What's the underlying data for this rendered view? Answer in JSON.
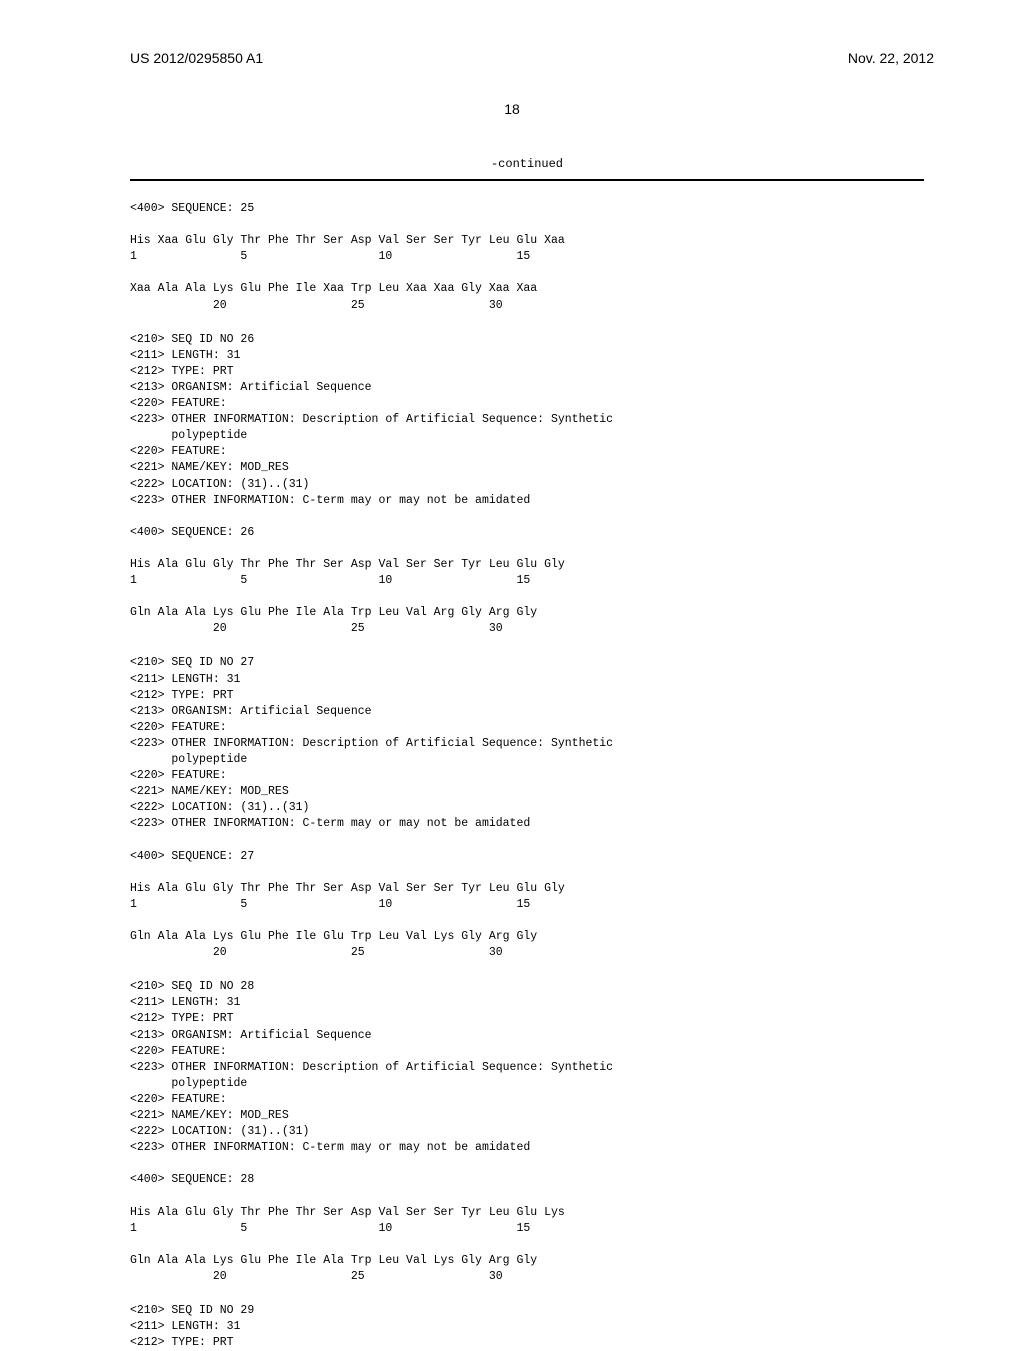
{
  "header": {
    "pub_id": "US 2012/0295850 A1",
    "pub_date": "Nov. 22, 2012",
    "page_num": "18"
  },
  "continued_label": "-continued",
  "sequences": {
    "block1": "<400> SEQUENCE: 25\n\nHis Xaa Glu Gly Thr Phe Thr Ser Asp Val Ser Ser Tyr Leu Glu Xaa\n1               5                   10                  15\n\nXaa Ala Ala Lys Glu Phe Ile Xaa Trp Leu Xaa Xaa Gly Xaa Xaa\n            20                  25                  30",
    "block2": "<210> SEQ ID NO 26\n<211> LENGTH: 31\n<212> TYPE: PRT\n<213> ORGANISM: Artificial Sequence\n<220> FEATURE:\n<223> OTHER INFORMATION: Description of Artificial Sequence: Synthetic\n      polypeptide\n<220> FEATURE:\n<221> NAME/KEY: MOD_RES\n<222> LOCATION: (31)..(31)\n<223> OTHER INFORMATION: C-term may or may not be amidated\n\n<400> SEQUENCE: 26\n\nHis Ala Glu Gly Thr Phe Thr Ser Asp Val Ser Ser Tyr Leu Glu Gly\n1               5                   10                  15\n\nGln Ala Ala Lys Glu Phe Ile Ala Trp Leu Val Arg Gly Arg Gly\n            20                  25                  30",
    "block3": "<210> SEQ ID NO 27\n<211> LENGTH: 31\n<212> TYPE: PRT\n<213> ORGANISM: Artificial Sequence\n<220> FEATURE:\n<223> OTHER INFORMATION: Description of Artificial Sequence: Synthetic\n      polypeptide\n<220> FEATURE:\n<221> NAME/KEY: MOD_RES\n<222> LOCATION: (31)..(31)\n<223> OTHER INFORMATION: C-term may or may not be amidated\n\n<400> SEQUENCE: 27\n\nHis Ala Glu Gly Thr Phe Thr Ser Asp Val Ser Ser Tyr Leu Glu Gly\n1               5                   10                  15\n\nGln Ala Ala Lys Glu Phe Ile Glu Trp Leu Val Lys Gly Arg Gly\n            20                  25                  30",
    "block4": "<210> SEQ ID NO 28\n<211> LENGTH: 31\n<212> TYPE: PRT\n<213> ORGANISM: Artificial Sequence\n<220> FEATURE:\n<223> OTHER INFORMATION: Description of Artificial Sequence: Synthetic\n      polypeptide\n<220> FEATURE:\n<221> NAME/KEY: MOD_RES\n<222> LOCATION: (31)..(31)\n<223> OTHER INFORMATION: C-term may or may not be amidated\n\n<400> SEQUENCE: 28\n\nHis Ala Glu Gly Thr Phe Thr Ser Asp Val Ser Ser Tyr Leu Glu Lys\n1               5                   10                  15\n\nGln Ala Ala Lys Glu Phe Ile Ala Trp Leu Val Lys Gly Arg Gly\n            20                  25                  30",
    "block5": "<210> SEQ ID NO 29\n<211> LENGTH: 31\n<212> TYPE: PRT"
  },
  "styling": {
    "background_color": "#ffffff",
    "text_color": "#000000",
    "mono_font": "Courier New",
    "header_font": "Arial",
    "mono_fontsize": 11.5,
    "header_fontsize": 14,
    "hr_weight": 2
  }
}
